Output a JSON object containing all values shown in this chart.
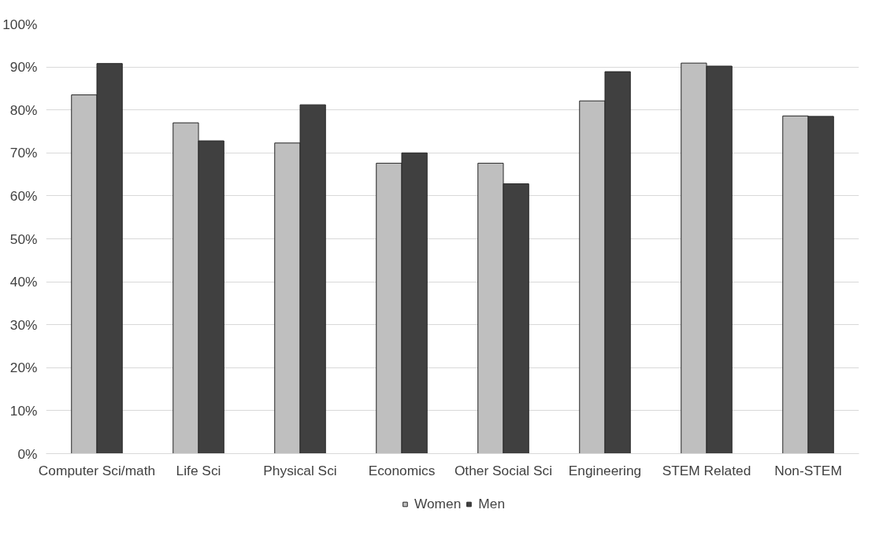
{
  "chart_data": {
    "type": "bar",
    "categories": [
      "Computer Sci/math",
      "Life Sci",
      "Physical Sci",
      "Economics",
      "Other Social Sci",
      "Engineering",
      "STEM Related",
      "Non-STEM"
    ],
    "series": [
      {
        "name": "Women",
        "color": "#bfbfbf",
        "values": [
          83.5,
          77.0,
          72.3,
          67.6,
          67.6,
          82.1,
          90.9,
          78.6
        ]
      },
      {
        "name": "Men",
        "color": "#404040",
        "values": [
          90.8,
          72.8,
          81.2,
          70.0,
          62.8,
          88.9,
          90.2,
          78.5
        ]
      }
    ],
    "ylim": [
      0,
      100
    ],
    "yticks": [
      {
        "value": 0,
        "label": "0%"
      },
      {
        "value": 10,
        "label": "10%"
      },
      {
        "value": 20,
        "label": "20%"
      },
      {
        "value": 30,
        "label": "30%"
      },
      {
        "value": 40,
        "label": "40%"
      },
      {
        "value": 50,
        "label": "50%"
      },
      {
        "value": 60,
        "label": "60%"
      },
      {
        "value": 70,
        "label": "70%"
      },
      {
        "value": 80,
        "label": "80%"
      },
      {
        "value": 90,
        "label": "90%"
      },
      {
        "value": 100,
        "label": "100%"
      }
    ],
    "grid": "y",
    "legend": "bottom"
  }
}
